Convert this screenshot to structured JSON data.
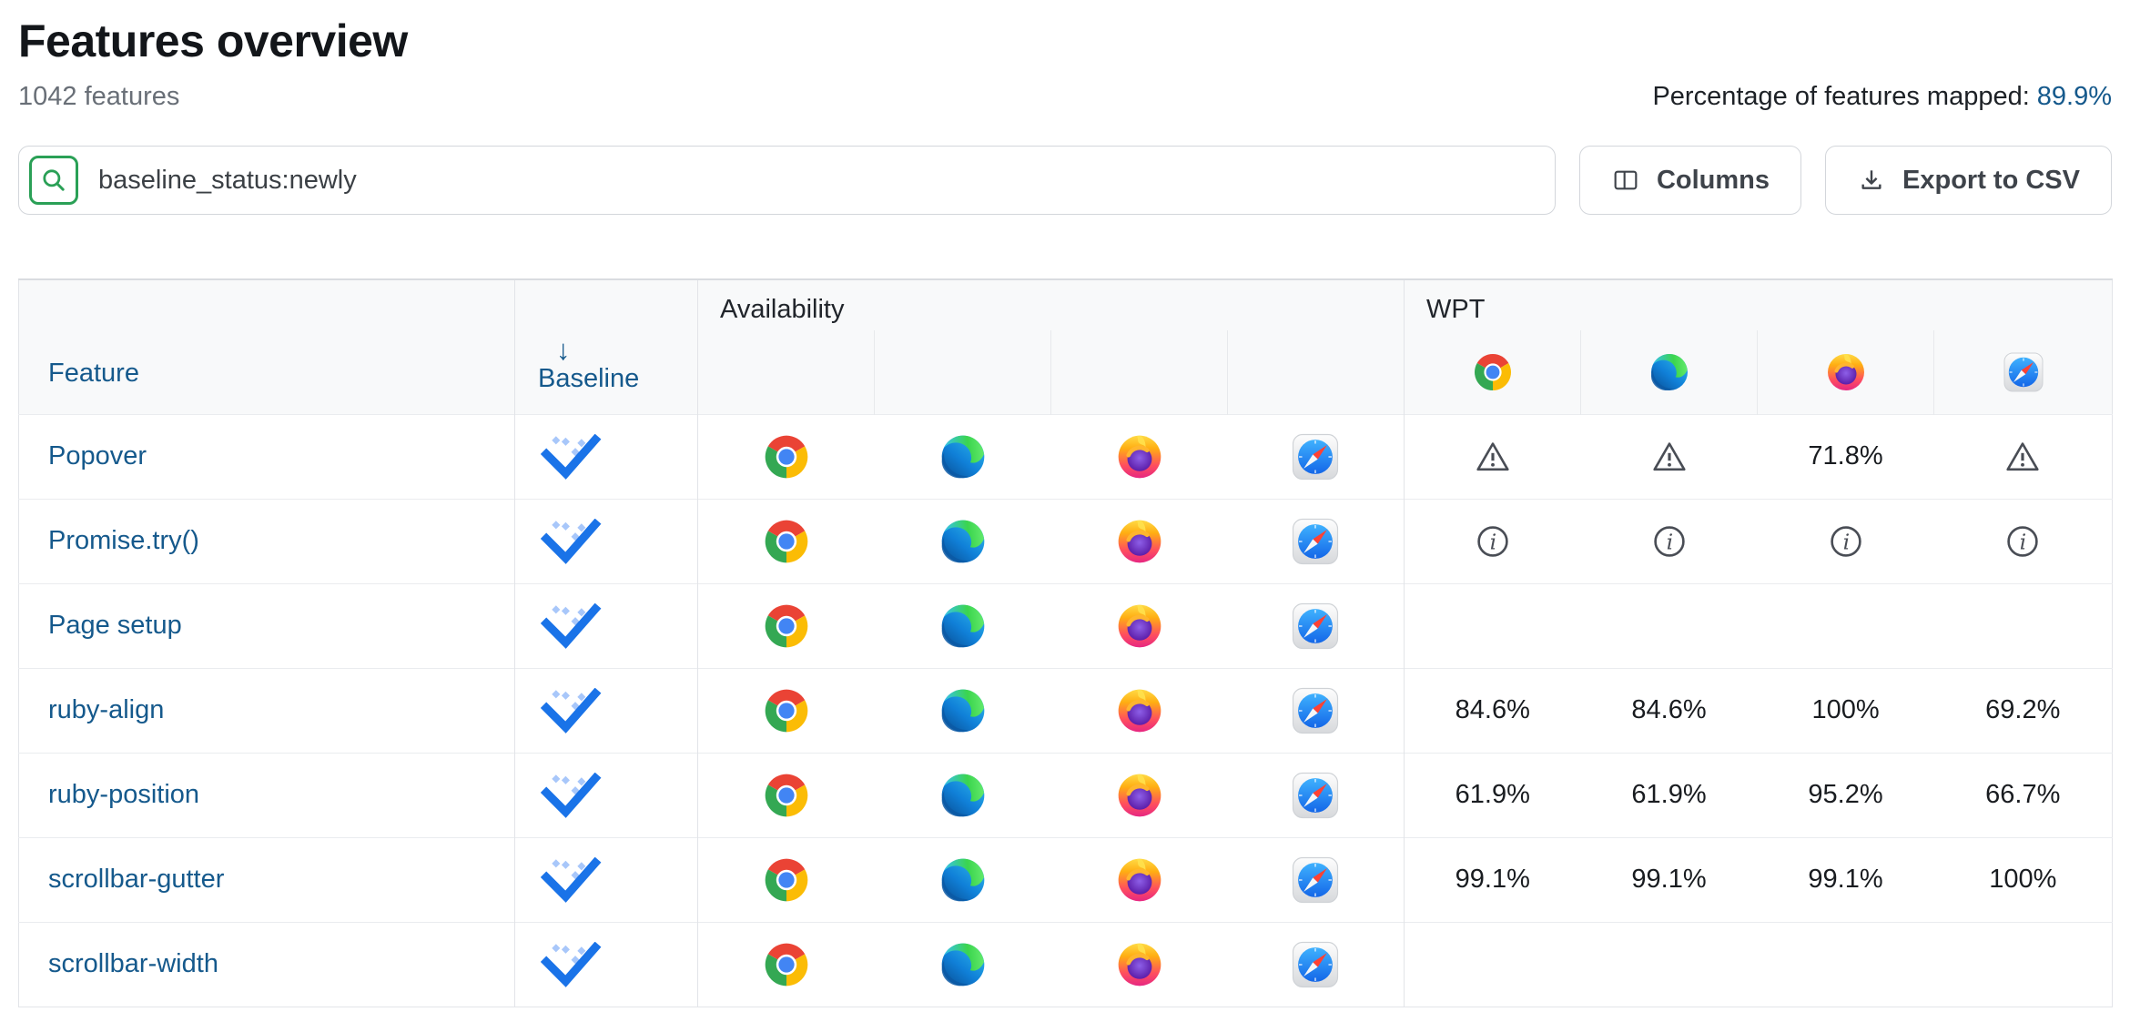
{
  "header": {
    "title": "Features overview",
    "subtitle": "1042 features",
    "mapped_label": "Percentage of features mapped:",
    "mapped_value": "89.9%"
  },
  "toolbar": {
    "search_value": "baseline_status:newly",
    "columns_button": "Columns",
    "export_button": "Export to CSV"
  },
  "table": {
    "feature_header": "Feature",
    "baseline_header": "Baseline",
    "sort_arrow": "↓",
    "availability_header": "Availability",
    "wpt_header": "WPT",
    "browsers": [
      "chrome",
      "edge",
      "firefox",
      "safari"
    ],
    "rows": [
      {
        "feature": "Popover",
        "baseline": "newly",
        "availability": [
          "chrome",
          "edge",
          "firefox",
          "safari"
        ],
        "wpt": [
          {
            "type": "warning"
          },
          {
            "type": "warning"
          },
          {
            "type": "value",
            "value": "71.8%"
          },
          {
            "type": "warning"
          }
        ]
      },
      {
        "feature": "Promise.try()",
        "baseline": "newly",
        "availability": [
          "chrome",
          "edge",
          "firefox",
          "safari"
        ],
        "wpt": [
          {
            "type": "info"
          },
          {
            "type": "info"
          },
          {
            "type": "info"
          },
          {
            "type": "info"
          }
        ]
      },
      {
        "feature": "Page setup",
        "baseline": "newly",
        "availability": [
          "chrome",
          "edge",
          "firefox",
          "safari"
        ],
        "wpt": [
          {
            "type": "empty"
          },
          {
            "type": "empty"
          },
          {
            "type": "empty"
          },
          {
            "type": "empty"
          }
        ]
      },
      {
        "feature": "ruby-align",
        "baseline": "newly",
        "availability": [
          "chrome",
          "edge",
          "firefox",
          "safari"
        ],
        "wpt": [
          {
            "type": "value",
            "value": "84.6%"
          },
          {
            "type": "value",
            "value": "84.6%"
          },
          {
            "type": "value",
            "value": "100%"
          },
          {
            "type": "value",
            "value": "69.2%"
          }
        ]
      },
      {
        "feature": "ruby-position",
        "baseline": "newly",
        "availability": [
          "chrome",
          "edge",
          "firefox",
          "safari"
        ],
        "wpt": [
          {
            "type": "value",
            "value": "61.9%"
          },
          {
            "type": "value",
            "value": "61.9%"
          },
          {
            "type": "value",
            "value": "95.2%"
          },
          {
            "type": "value",
            "value": "66.7%"
          }
        ]
      },
      {
        "feature": "scrollbar-gutter",
        "baseline": "newly",
        "availability": [
          "chrome",
          "edge",
          "firefox",
          "safari"
        ],
        "wpt": [
          {
            "type": "value",
            "value": "99.1%"
          },
          {
            "type": "value",
            "value": "99.1%"
          },
          {
            "type": "value",
            "value": "99.1%"
          },
          {
            "type": "value",
            "value": "100%"
          }
        ]
      },
      {
        "feature": "scrollbar-width",
        "baseline": "newly",
        "availability": [
          "chrome",
          "edge",
          "firefox",
          "safari"
        ],
        "wpt": [
          {
            "type": "empty"
          },
          {
            "type": "empty"
          },
          {
            "type": "empty"
          },
          {
            "type": "empty"
          }
        ]
      }
    ]
  },
  "colors": {
    "link_blue": "#15598c",
    "search_green": "#2aa056",
    "baseline_check_blue": "#1a73e8",
    "baseline_sparkle_blue": "#a8c7fa",
    "header_background": "#f8f9fa"
  }
}
